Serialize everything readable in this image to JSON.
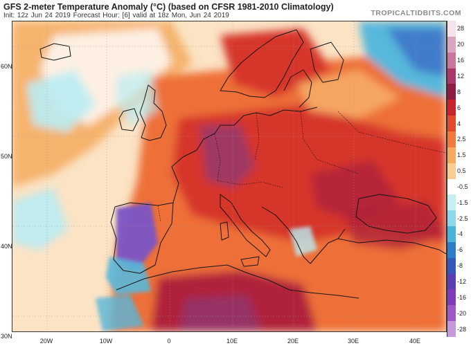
{
  "header": {
    "title": "GFS 2-meter Temperature Anomaly (°C) (based on CFSR 1981-2010 Climatology)",
    "subtitle": "Init: 12z Jun 24 2019   Forecast Hour: [6]   valid at 18z Mon, Jun 24 2019",
    "brand": "TROPICALTIDBITS.COM"
  },
  "map": {
    "latitude_labels": [
      "60N",
      "50N",
      "40N",
      "30N"
    ],
    "longitude_labels": [
      "20W",
      "10W",
      "0",
      "10E",
      "20E",
      "30E",
      "40E"
    ],
    "colors": {
      "sea_neutral": "#fbe3c4",
      "warm_light": "#f6b36d",
      "warm_mid": "#ee7038",
      "warm_strong": "#d6342a",
      "warm_very_strong": "#b0233a",
      "hot_purple": "#8c3a78",
      "cool_light": "#b9ecf4",
      "cool_mid": "#56b8dc",
      "cool_strong": "#3b6cc6",
      "cold_purple": "#7a55c6",
      "neutral_white": "#ffffff",
      "coastline": "#151515"
    }
  },
  "colorbar": {
    "labels": [
      "28",
      "20",
      "16",
      "12",
      "8",
      "6",
      "4",
      "2.5",
      "1.5",
      "0.5",
      "-0.5",
      "-1.5",
      "-2.5",
      "-4",
      "-6",
      "-8",
      "-12",
      "-16",
      "-20",
      "-28"
    ],
    "colors": [
      "#f5e2ea",
      "#d8a6c0",
      "#c7779d",
      "#a8396a",
      "#8d1c43",
      "#c6252d",
      "#e14b2d",
      "#ee7a3d",
      "#f5aa62",
      "#f7cd94",
      "#ffffff",
      "#c6eff4",
      "#8fd8ea",
      "#4cb2da",
      "#2f7dc9",
      "#3658b6",
      "#5a3fb0",
      "#7e3cb8",
      "#9b5ac6",
      "#c69ad8"
    ]
  }
}
